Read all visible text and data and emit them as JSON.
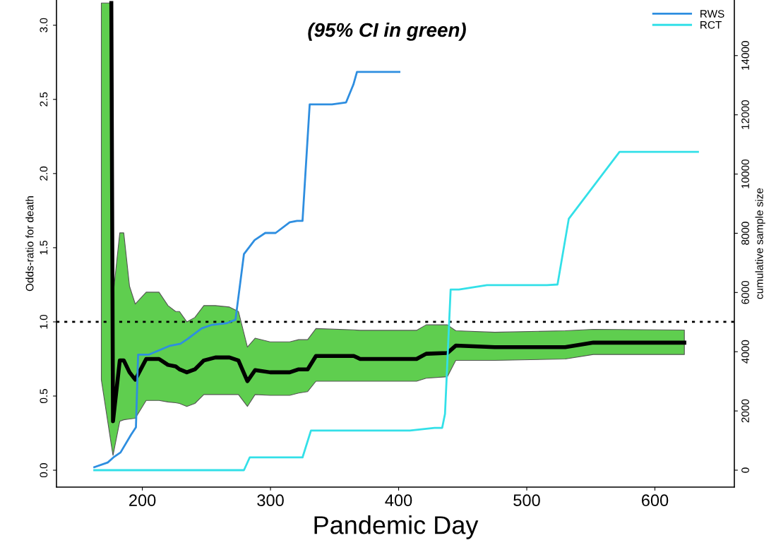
{
  "chart_data": {
    "type": "line",
    "title": "(95% CI in green)",
    "xlabel": "Pandemic Day",
    "ylabel": "Odds-ratio for death",
    "y2label": "cumulative sample size",
    "xlim": [
      133,
      662
    ],
    "xticks": [
      200,
      300,
      400,
      500,
      600
    ],
    "ylim": [
      -0.114,
      3.17
    ],
    "yticks": [
      {
        "value": 0,
        "label": "0.0"
      },
      0.5,
      {
        "value": 1,
        "label": "1.0"
      },
      1.5,
      {
        "value": 2,
        "label": "2.0"
      },
      2.5,
      {
        "value": 3,
        "label": "3.0"
      }
    ],
    "y2lim": [
      -572,
      15877
    ],
    "y2ticks": [
      0,
      2000,
      4000,
      6000,
      8000,
      10000,
      12000,
      14000
    ],
    "ref_lines": [
      {
        "axis": "y",
        "value": 1,
        "color": "#000000",
        "line_style": "dotted"
      }
    ],
    "legend": "top right",
    "grid": false,
    "series": [
      {
        "color": "#000000",
        "x": [
          168,
          175.8,
          177.1,
          182.4,
          185.5,
          190,
          194.5,
          203,
          213,
          220,
          226,
          229,
          234.7,
          241,
          248,
          257,
          268,
          275,
          282,
          288,
          299.7,
          315,
          322,
          329,
          335.5,
          365,
          370,
          414,
          421.5,
          438,
          444.6,
          475,
          530,
          552,
          623
        ],
        "values": [
          null,
          3.15,
          0.33,
          0.74,
          0.74,
          0.66,
          0.61,
          0.75,
          0.75,
          0.71,
          0.7,
          0.68,
          0.66,
          0.68,
          0.74,
          0.76,
          0.76,
          0.74,
          0.6,
          0.675,
          0.66,
          0.66,
          0.68,
          0.68,
          0.77,
          0.77,
          0.75,
          0.75,
          0.785,
          0.79,
          0.84,
          0.83,
          0.83,
          0.86,
          0.86
        ],
        "lower": [
          0.61,
          0.17,
          0.1,
          0.33,
          0.34,
          0.345,
          0.35,
          0.47,
          0.47,
          0.46,
          0.455,
          0.45,
          0.43,
          0.45,
          0.51,
          0.51,
          0.51,
          0.51,
          0.43,
          0.51,
          0.505,
          0.505,
          0.52,
          0.53,
          0.6,
          0.6,
          0.6,
          0.6,
          0.62,
          0.63,
          0.74,
          0.74,
          0.75,
          0.78,
          0.78
        ],
        "upper": [
          3.15,
          3.15,
          1.17,
          1.6,
          1.6,
          1.24,
          1.12,
          1.2,
          1.2,
          1.11,
          1.07,
          1.07,
          1.0,
          1.03,
          1.11,
          1.11,
          1.1,
          1.07,
          0.83,
          0.89,
          0.865,
          0.865,
          0.88,
          0.88,
          0.955,
          0.946,
          0.943,
          0.943,
          0.98,
          0.98,
          0.94,
          0.93,
          0.94,
          0.95,
          0.945
        ]
      },
      {
        "name": "RWS",
        "color": "#2e8ee0",
        "axis": "y2",
        "x": [
          162.5,
          173,
          177.4,
          183,
          191.2,
          195,
          196.7,
          204.9,
          221.5,
          229.8,
          235.3,
          246.3,
          254.5,
          265.6,
          272.7,
          279.3,
          287.6,
          295.9,
          304,
          315,
          320.7,
          325,
          330.6,
          348,
          359,
          364.7,
          367.5,
          400.6
        ],
        "values": [
          100,
          260,
          430,
          600,
          1200,
          1450,
          3900,
          3900,
          4200,
          4270,
          4430,
          4790,
          4910,
          4960,
          5080,
          7300,
          7770,
          8010,
          8010,
          8370,
          8420,
          8420,
          12350,
          12350,
          12420,
          13020,
          13450,
          13450
        ]
      },
      {
        "name": "RCT",
        "color": "#33e0e8",
        "axis": "y2",
        "x": [
          162.5,
          279.3,
          283.8,
          325,
          331.6,
          408.8,
          428,
          434,
          436.2,
          440.6,
          447.1,
          469,
          515.8,
          524,
          532.8,
          572.4,
          633.6
        ],
        "values": [
          0,
          0,
          430,
          430,
          1340,
          1340,
          1430,
          1430,
          1900,
          6100,
          6100,
          6250,
          6250,
          6270,
          8490,
          10750,
          10750
        ]
      }
    ]
  }
}
